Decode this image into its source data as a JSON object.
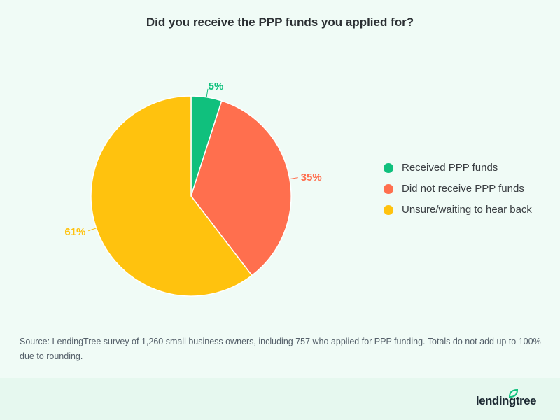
{
  "chart_data": {
    "type": "pie",
    "title": "Did you receive the PPP funds you applied for?",
    "categories": [
      "Received PPP funds",
      "Did not receive PPP funds",
      "Unsure/waiting to hear back"
    ],
    "values": [
      5,
      35,
      61
    ],
    "labels": [
      "5%",
      "35%",
      "61%"
    ],
    "colors": [
      "#10c07d",
      "#ff6f4e",
      "#ffc20e"
    ],
    "legend_position": "right"
  },
  "source": "Source: LendingTree survey of 1,260 small business owners, including 757 who applied for PPP funding. Totals do not add up to 100% due to rounding.",
  "logo": "lendingtree"
}
